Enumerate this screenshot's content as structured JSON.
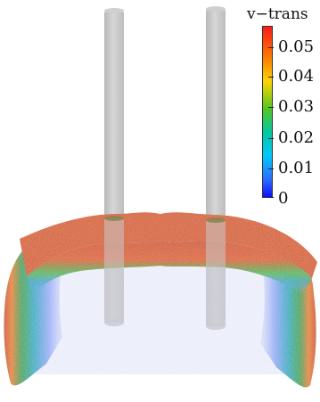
{
  "colorbar": {
    "title": "v−trans",
    "ticks": [
      {
        "label": "0.05",
        "value": 0.05
      },
      {
        "label": "0.04",
        "value": 0.04
      },
      {
        "label": "0.03",
        "value": 0.03
      },
      {
        "label": "0.02",
        "value": 0.02
      },
      {
        "label": "0.01",
        "value": 0.01
      },
      {
        "label": "0",
        "value": 0
      }
    ],
    "range": [
      0,
      0.057
    ],
    "colors": [
      "#1010ff",
      "#00c8ff",
      "#55c81e",
      "#ffd400",
      "#ff7a00",
      "#ff1a1a"
    ]
  },
  "scene": {
    "cylinder_color": "#c8c8c8",
    "surface_color": "#e06020",
    "inner_color": "#2ca7a0",
    "fade_color": "#9aa8ff"
  }
}
